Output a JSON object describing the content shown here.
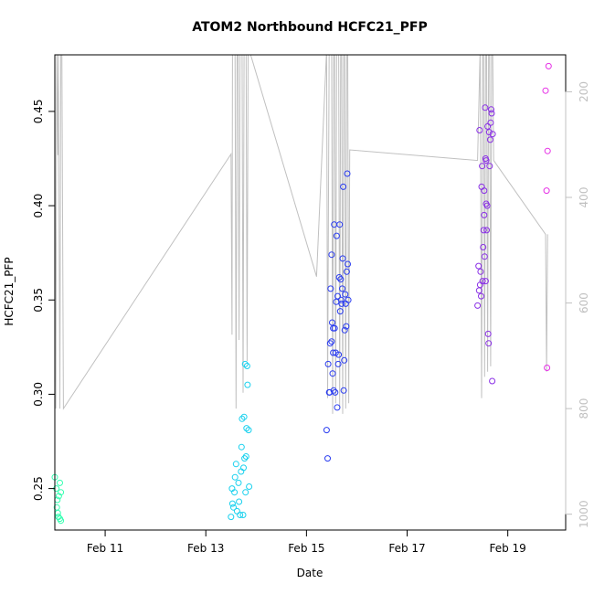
{
  "chart_data": {
    "type": "scatter",
    "title": "ATOM2 Northbound HCFC21_PFP",
    "xlabel": "Date",
    "ylabel": "HCFC21_PFP",
    "xlim": [
      10.0,
      20.15
    ],
    "ylim": [
      0.228,
      0.48
    ],
    "x_ticks": [
      {
        "v": 11,
        "label": "Feb 11"
      },
      {
        "v": 13,
        "label": "Feb 13"
      },
      {
        "v": 15,
        "label": "Feb 15"
      },
      {
        "v": 17,
        "label": "Feb 17"
      },
      {
        "v": 19,
        "label": "Feb 19"
      }
    ],
    "y_ticks": [
      {
        "v": 0.25,
        "label": "0.25"
      },
      {
        "v": 0.3,
        "label": "0.30"
      },
      {
        "v": 0.35,
        "label": "0.35"
      },
      {
        "v": 0.4,
        "label": "0.40"
      },
      {
        "v": 0.45,
        "label": "0.45"
      }
    ],
    "y2lim": [
      1030,
      130
    ],
    "y2_ticks": [
      {
        "v": 200,
        "label": "200"
      },
      {
        "v": 400,
        "label": "400"
      },
      {
        "v": 600,
        "label": "600"
      },
      {
        "v": 800,
        "label": "800"
      },
      {
        "v": 1000,
        "label": "1000"
      }
    ],
    "colors": {
      "green": "#33ffb0",
      "cyan": "#1ad1ee",
      "blue": "#2a3cf0",
      "purple": "#8a2fe6",
      "magenta": "#e62fe6",
      "altitude": "#c0c0c0"
    },
    "series": [
      {
        "color_key": "green",
        "points": [
          [
            10.0,
            0.256
          ],
          [
            10.03,
            0.25
          ],
          [
            10.05,
            0.244
          ],
          [
            10.04,
            0.24
          ],
          [
            10.06,
            0.237
          ],
          [
            10.08,
            0.246
          ],
          [
            10.1,
            0.253
          ],
          [
            10.12,
            0.248
          ],
          [
            10.07,
            0.235
          ],
          [
            10.1,
            0.234
          ],
          [
            10.12,
            0.233
          ]
        ]
      },
      {
        "color_key": "cyan",
        "points": [
          [
            13.5,
            0.235
          ],
          [
            13.52,
            0.25
          ],
          [
            13.53,
            0.242
          ],
          [
            13.55,
            0.24
          ],
          [
            13.57,
            0.248
          ],
          [
            13.58,
            0.256
          ],
          [
            13.6,
            0.263
          ],
          [
            13.62,
            0.238
          ],
          [
            13.65,
            0.253
          ],
          [
            13.66,
            0.243
          ],
          [
            13.68,
            0.236
          ],
          [
            13.7,
            0.259
          ],
          [
            13.71,
            0.272
          ],
          [
            13.72,
            0.287
          ],
          [
            13.74,
            0.236
          ],
          [
            13.75,
            0.261
          ],
          [
            13.76,
            0.288
          ],
          [
            13.77,
            0.266
          ],
          [
            13.78,
            0.316
          ],
          [
            13.79,
            0.248
          ],
          [
            13.8,
            0.267
          ],
          [
            13.81,
            0.282
          ],
          [
            13.82,
            0.315
          ],
          [
            13.83,
            0.305
          ],
          [
            13.85,
            0.281
          ],
          [
            13.86,
            0.251
          ]
        ]
      },
      {
        "color_key": "blue",
        "points": [
          [
            15.4,
            0.281
          ],
          [
            15.42,
            0.266
          ],
          [
            15.43,
            0.316
          ],
          [
            15.45,
            0.301
          ],
          [
            15.47,
            0.327
          ],
          [
            15.48,
            0.356
          ],
          [
            15.5,
            0.374
          ],
          [
            15.51,
            0.338
          ],
          [
            15.52,
            0.311
          ],
          [
            15.53,
            0.322
          ],
          [
            15.54,
            0.302
          ],
          [
            15.55,
            0.39
          ],
          [
            15.56,
            0.335
          ],
          [
            15.57,
            0.301
          ],
          [
            15.58,
            0.322
          ],
          [
            15.59,
            0.349
          ],
          [
            15.6,
            0.384
          ],
          [
            15.61,
            0.293
          ],
          [
            15.62,
            0.352
          ],
          [
            15.63,
            0.316
          ],
          [
            15.64,
            0.321
          ],
          [
            15.65,
            0.362
          ],
          [
            15.66,
            0.39
          ],
          [
            15.67,
            0.344
          ],
          [
            15.68,
            0.361
          ],
          [
            15.69,
            0.35
          ],
          [
            15.7,
            0.348
          ],
          [
            15.71,
            0.356
          ],
          [
            15.72,
            0.372
          ],
          [
            15.73,
            0.41
          ],
          [
            15.74,
            0.302
          ],
          [
            15.75,
            0.318
          ],
          [
            15.76,
            0.334
          ],
          [
            15.77,
            0.353
          ],
          [
            15.78,
            0.348
          ],
          [
            15.79,
            0.336
          ],
          [
            15.8,
            0.365
          ],
          [
            15.81,
            0.417
          ],
          [
            15.82,
            0.369
          ],
          [
            15.83,
            0.35
          ],
          [
            15.5,
            0.328
          ],
          [
            15.53,
            0.335
          ],
          [
            15.46,
            0.301
          ]
        ]
      },
      {
        "color_key": "purple",
        "points": [
          [
            18.4,
            0.347
          ],
          [
            18.42,
            0.368
          ],
          [
            18.43,
            0.355
          ],
          [
            18.44,
            0.44
          ],
          [
            18.45,
            0.358
          ],
          [
            18.46,
            0.365
          ],
          [
            18.47,
            0.352
          ],
          [
            18.48,
            0.41
          ],
          [
            18.49,
            0.421
          ],
          [
            18.5,
            0.36
          ],
          [
            18.51,
            0.378
          ],
          [
            18.52,
            0.387
          ],
          [
            18.53,
            0.408
          ],
          [
            18.54,
            0.373
          ],
          [
            18.55,
            0.452
          ],
          [
            18.56,
            0.425
          ],
          [
            18.57,
            0.401
          ],
          [
            18.58,
            0.387
          ],
          [
            18.59,
            0.4
          ],
          [
            18.6,
            0.442
          ],
          [
            18.61,
            0.332
          ],
          [
            18.62,
            0.327
          ],
          [
            18.63,
            0.439
          ],
          [
            18.64,
            0.421
          ],
          [
            18.65,
            0.435
          ],
          [
            18.66,
            0.444
          ],
          [
            18.67,
            0.451
          ],
          [
            18.68,
            0.449
          ],
          [
            18.69,
            0.307
          ],
          [
            18.7,
            0.438
          ],
          [
            18.56,
            0.36
          ],
          [
            18.53,
            0.395
          ],
          [
            18.57,
            0.424
          ]
        ]
      },
      {
        "color_key": "magenta",
        "points": [
          [
            19.75,
            0.461
          ],
          [
            19.77,
            0.408
          ],
          [
            19.78,
            0.314
          ],
          [
            19.79,
            0.429
          ],
          [
            19.81,
            0.474
          ]
        ]
      }
    ],
    "altitude_line": [
      [
        9.96,
        810
      ],
      [
        9.98,
        120
      ],
      [
        10.0,
        120
      ],
      [
        10.02,
        800
      ],
      [
        10.04,
        120
      ],
      [
        10.06,
        320
      ],
      [
        10.07,
        120
      ],
      [
        10.1,
        800
      ],
      [
        10.12,
        120
      ],
      [
        10.14,
        120
      ],
      [
        10.17,
        800
      ],
      [
        13.5,
        318
      ],
      [
        13.52,
        660
      ],
      [
        13.53,
        120
      ],
      [
        13.56,
        120
      ],
      [
        13.58,
        120
      ],
      [
        13.6,
        800
      ],
      [
        13.62,
        120
      ],
      [
        13.64,
        120
      ],
      [
        13.66,
        670
      ],
      [
        13.68,
        120
      ],
      [
        13.7,
        120
      ],
      [
        13.72,
        120
      ],
      [
        13.74,
        770
      ],
      [
        13.76,
        120
      ],
      [
        13.78,
        120
      ],
      [
        13.8,
        120
      ],
      [
        13.82,
        710
      ],
      [
        13.84,
        120
      ],
      [
        13.86,
        120
      ],
      [
        15.2,
        550
      ],
      [
        15.4,
        120
      ],
      [
        15.42,
        780
      ],
      [
        15.45,
        120
      ],
      [
        15.48,
        120
      ],
      [
        15.5,
        120
      ],
      [
        15.52,
        810
      ],
      [
        15.54,
        120
      ],
      [
        15.56,
        120
      ],
      [
        15.58,
        790
      ],
      [
        15.6,
        120
      ],
      [
        15.62,
        120
      ],
      [
        15.64,
        120
      ],
      [
        15.66,
        800
      ],
      [
        15.68,
        120
      ],
      [
        15.7,
        120
      ],
      [
        15.72,
        810
      ],
      [
        15.74,
        120
      ],
      [
        15.76,
        120
      ],
      [
        15.78,
        800
      ],
      [
        15.8,
        120
      ],
      [
        15.82,
        120
      ],
      [
        15.84,
        790
      ],
      [
        15.86,
        310
      ],
      [
        18.4,
        330
      ],
      [
        18.45,
        120
      ],
      [
        18.48,
        780
      ],
      [
        18.5,
        120
      ],
      [
        18.52,
        120
      ],
      [
        18.54,
        740
      ],
      [
        18.56,
        120
      ],
      [
        18.58,
        120
      ],
      [
        18.6,
        730
      ],
      [
        18.62,
        120
      ],
      [
        18.64,
        120
      ],
      [
        18.66,
        720
      ],
      [
        18.68,
        120
      ],
      [
        18.7,
        120
      ],
      [
        18.72,
        330
      ],
      [
        19.75,
        470
      ],
      [
        19.77,
        730
      ],
      [
        19.79,
        470
      ]
    ]
  }
}
